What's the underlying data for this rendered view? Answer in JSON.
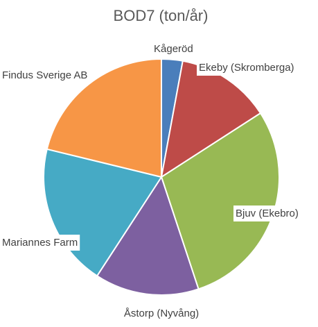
{
  "chart_data": {
    "type": "pie",
    "title": "BOD7 (ton/år)",
    "slices": [
      {
        "label": "Kågeröd",
        "value": 2.9,
        "color": "#4a7ebb"
      },
      {
        "label": "Ekeby (Skromberga)",
        "value": 13.0,
        "color": "#be4b48"
      },
      {
        "label": "Bjuv (Ekebro)",
        "value": 29.0,
        "color": "#98b954"
      },
      {
        "label": "Åstorp (Nyvång)",
        "value": 14.3,
        "color": "#7d60a0"
      },
      {
        "label": "Mariannes Farm",
        "value": 19.6,
        "color": "#46aac5"
      },
      {
        "label": "Findus Sverige AB",
        "value": 21.2,
        "color": "#f79646"
      }
    ]
  }
}
